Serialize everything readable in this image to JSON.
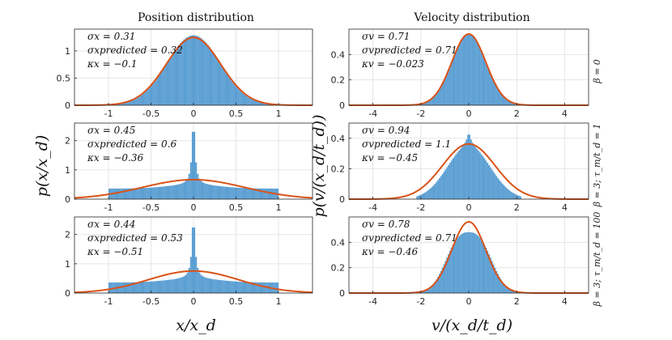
{
  "chart_data": {
    "type": "histogram-grid",
    "columns": [
      {
        "title": "Position distribution",
        "xlabel": "x/x_d",
        "ylabel": "p(x/x_d)",
        "xlim": [
          -1.4,
          1.4
        ],
        "xticks": [
          "-1",
          "-0.5",
          "0",
          "0.5",
          "1"
        ],
        "xtick_values": [
          -1,
          -0.5,
          0,
          0.5,
          1
        ]
      },
      {
        "title": "Velocity distribution",
        "xlabel": "v/(x_d/t_d)",
        "ylabel": "p(v/(x_d/t_d))",
        "xlim": [
          -5,
          5
        ],
        "xticks": [
          "-4",
          "-2",
          "0",
          "2",
          "4"
        ],
        "xtick_values": [
          -4,
          -2,
          0,
          2,
          4
        ]
      }
    ],
    "rows": [
      {
        "label": "β = 0",
        "position": {
          "ylim": [
            0,
            1.4
          ],
          "yticks": [
            0,
            0.5,
            1
          ],
          "sigma": "0.31",
          "sigma_predicted": "0.32",
          "kappa": "−0.1",
          "hist_shape": "gaussian",
          "hist_sigma": 0.31,
          "curve_sigma": 0.32,
          "spike_height": 0.0
        },
        "velocity": {
          "ylim": [
            0,
            0.6
          ],
          "yticks": [
            0,
            0.2,
            0.4
          ],
          "sigma": "0.71",
          "sigma_predicted": "0.71",
          "kappa": "−0.023",
          "hist_shape": "gaussian",
          "hist_sigma": 0.71,
          "curve_sigma": 0.71
        }
      },
      {
        "label": "β = 3; τ_m/t_d = 1",
        "position": {
          "ylim": [
            0,
            2.6
          ],
          "yticks": [
            0,
            1,
            2
          ],
          "sigma": "0.45",
          "sigma_predicted": "0.6",
          "kappa": "−0.36",
          "hist_shape": "uniform-plus-spike",
          "hist_sigma": 0.45,
          "curve_sigma": 0.6,
          "spike_height": 2.4
        },
        "velocity": {
          "ylim": [
            0,
            0.5
          ],
          "yticks": [
            0,
            0.2,
            0.4
          ],
          "sigma": "0.94",
          "sigma_predicted": "1.1",
          "kappa": "−0.45",
          "hist_shape": "peaked",
          "hist_sigma": 0.94,
          "curve_sigma": 1.1
        }
      },
      {
        "label": "β = 3; τ_m/t_d = 100",
        "position": {
          "ylim": [
            0,
            2.6
          ],
          "yticks": [
            0,
            1,
            2
          ],
          "sigma": "0.44",
          "sigma_predicted": "0.53",
          "kappa": "−0.51",
          "hist_shape": "uniform-plus-spike",
          "hist_sigma": 0.44,
          "curve_sigma": 0.53,
          "spike_height": 2.3
        },
        "velocity": {
          "ylim": [
            0,
            0.6
          ],
          "yticks": [
            0,
            0.2,
            0.4
          ],
          "sigma": "0.78",
          "sigma_predicted": "0.71",
          "kappa": "−0.46",
          "hist_shape": "flat-top",
          "hist_sigma": 0.78,
          "curve_sigma": 0.71
        }
      }
    ],
    "colors": {
      "hist": "#5b9fd3",
      "curve": "#d95319",
      "grid": "#e6e6e6",
      "axis": "#262626"
    }
  }
}
